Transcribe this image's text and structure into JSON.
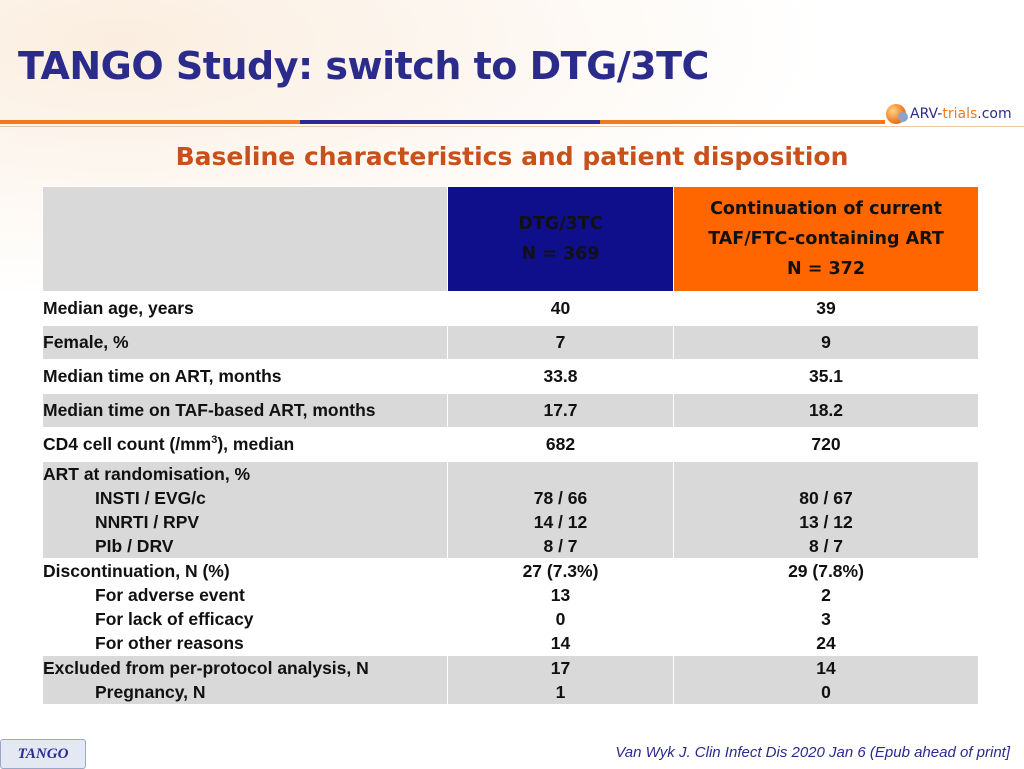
{
  "title": "TANGO Study: switch to DTG/3TC",
  "logo": {
    "part1": "ARV-",
    "part2": "trials",
    "part3": ".com"
  },
  "subtitle": "Baseline characteristics and patient disposition",
  "columns": {
    "dtg": {
      "line1": "DTG/3TC",
      "line2": "N = 369"
    },
    "cont": {
      "line1": "Continuation of current",
      "line2": "TAF/FTC-containing ART",
      "line3": "N = 372"
    }
  },
  "rows": {
    "age": {
      "label": "Median age, years",
      "dtg": "40",
      "cont": "39"
    },
    "female": {
      "label": "Female, %",
      "dtg": "7",
      "cont": "9"
    },
    "art_time": {
      "label": "Median time on ART, months",
      "dtg": "33.8",
      "cont": "35.1"
    },
    "taf_time": {
      "label": "Median time on TAF-based ART, months",
      "dtg": "17.7",
      "cont": "18.2"
    },
    "cd4": {
      "label_pre": "CD4 cell count (/mm",
      "label_sup": "3",
      "label_post": "), median",
      "dtg": "682",
      "cont": "720"
    },
    "art_rand": {
      "label": "ART at randomisation, %",
      "sub": [
        "INSTI / EVG/c",
        "NNRTI / RPV",
        "PIb / DRV"
      ],
      "dtg": [
        "78 / 66",
        "14 / 12",
        "8 / 7"
      ],
      "cont": [
        "80 / 67",
        "13 / 12",
        "8 / 7"
      ]
    },
    "discont": {
      "label": "Discontinuation, N (%)",
      "sub": [
        "For adverse event",
        "For lack of efficacy",
        "For other reasons"
      ],
      "dtg": [
        "27 (7.3%)",
        "13",
        "0",
        "14"
      ],
      "cont": [
        "29 (7.8%)",
        "2",
        "3",
        "24"
      ]
    },
    "excluded": {
      "label": "Excluded from per-protocol analysis, N",
      "sub": [
        "Pregnancy, N"
      ],
      "dtg": [
        "17",
        "1"
      ],
      "cont": [
        "14",
        "0"
      ]
    }
  },
  "footer": {
    "tag": "TANGO",
    "citation": "Van Wyk J. Clin Infect Dis 2020 Jan 6 (Epub ahead of print]"
  },
  "colors": {
    "title": "#2b2b8c",
    "subtitle": "#c8501a",
    "dtg_header": "#0f0f8c",
    "cont_header": "#ff6600",
    "row_gray": "#d9d9d9",
    "accent_orange": "#f07a1c"
  }
}
